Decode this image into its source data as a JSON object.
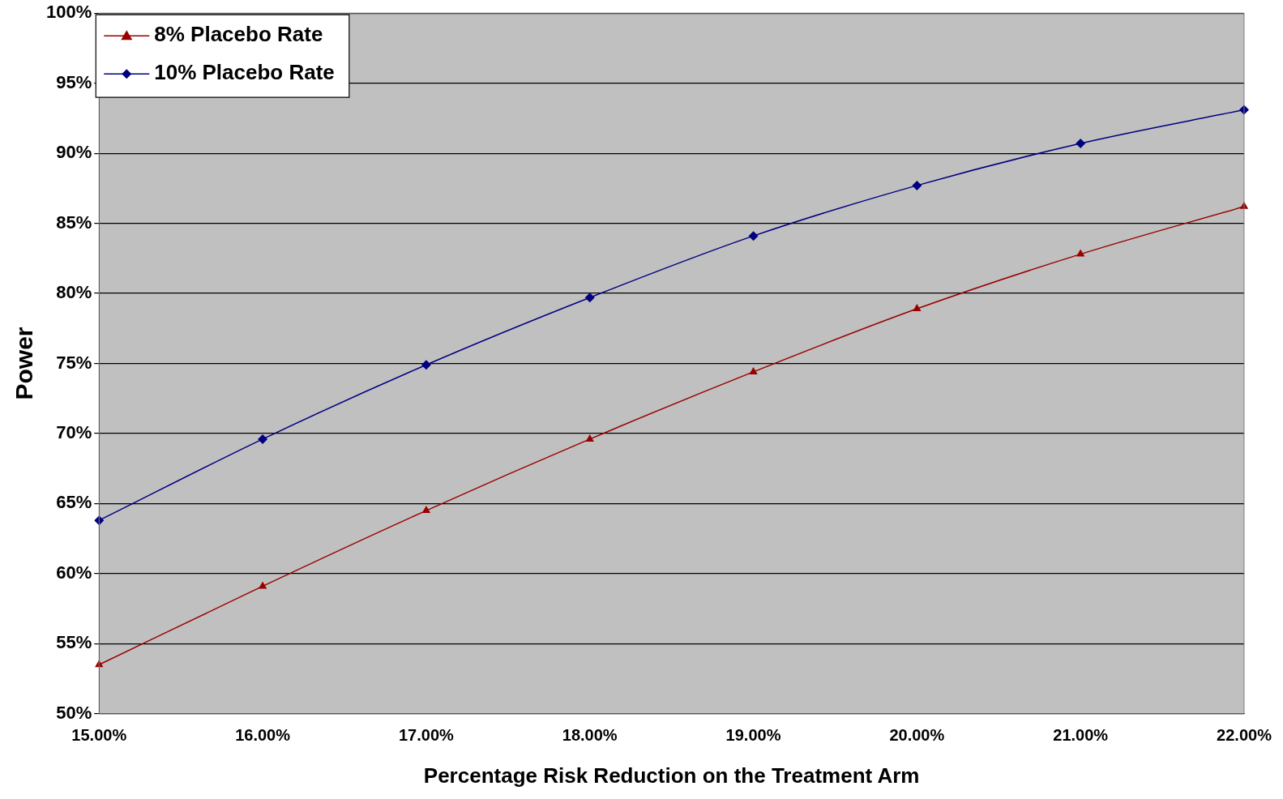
{
  "chart_data": {
    "type": "line",
    "xlabel": "Percentage Risk Reduction on the Treatment Arm",
    "ylabel": "Power",
    "categories": [
      "15.00%",
      "16.00%",
      "17.00%",
      "18.00%",
      "19.00%",
      "20.00%",
      "21.00%",
      "22.00%"
    ],
    "series": [
      {
        "name": "8% Placebo Rate",
        "color": "#990000",
        "marker": "triangle",
        "values": [
          53.5,
          59.1,
          64.5,
          69.6,
          74.4,
          78.9,
          82.8,
          86.2
        ]
      },
      {
        "name": "10% Placebo Rate",
        "color": "#000080",
        "marker": "diamond",
        "values": [
          63.8,
          69.6,
          74.9,
          79.7,
          84.1,
          87.7,
          90.7,
          93.1
        ]
      }
    ],
    "ylim": [
      50,
      100
    ],
    "yticks": [
      {
        "value": 50,
        "label": "50%"
      },
      {
        "value": 55,
        "label": "55%"
      },
      {
        "value": 60,
        "label": "60%"
      },
      {
        "value": 65,
        "label": "65%"
      },
      {
        "value": 70,
        "label": "70%"
      },
      {
        "value": 75,
        "label": "75%"
      },
      {
        "value": 80,
        "label": "80%"
      },
      {
        "value": 85,
        "label": "85%"
      },
      {
        "value": 90,
        "label": "90%"
      },
      {
        "value": 95,
        "label": "95%"
      },
      {
        "value": 100,
        "label": "100%"
      }
    ],
    "grid": "y",
    "legend": "top left",
    "line_style": "solid"
  }
}
